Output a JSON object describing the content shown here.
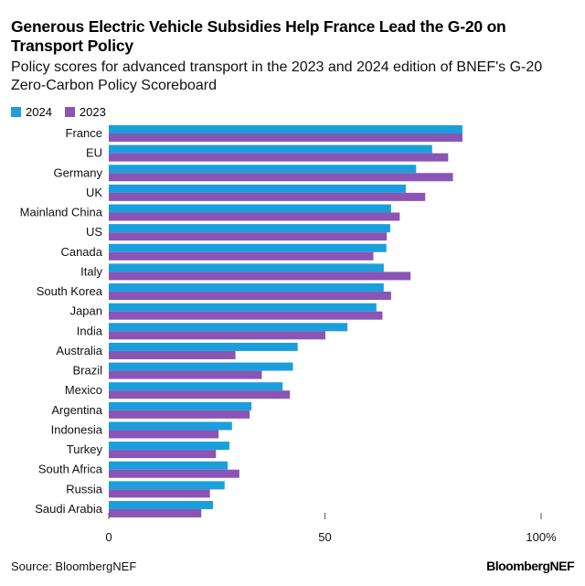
{
  "title": "Generous Electric Vehicle Subsidies Help France Lead the G-20 on Transport Policy",
  "subtitle": "Policy scores for advanced transport in the 2023 and 2024 edition of BNEF's G-20 Zero-Carbon Policy Scoreboard",
  "source": "Source: BloombergNEF",
  "logo": "BloombergNEF",
  "chart_data": {
    "type": "bar",
    "orientation": "horizontal",
    "categories": [
      "France",
      "EU",
      "Germany",
      "UK",
      "Mainland China",
      "US",
      "Canada",
      "Italy",
      "South Korea",
      "Japan",
      "India",
      "Australia",
      "Brazil",
      "Mexico",
      "Argentina",
      "Indonesia",
      "Turkey",
      "South Africa",
      "Russia",
      "Saudi Arabia"
    ],
    "series": [
      {
        "name": "2024",
        "color": "#1a9fdc",
        "values": [
          81.8,
          74.8,
          71.1,
          68.7,
          65.3,
          65.1,
          64.2,
          63.6,
          63.6,
          61.9,
          55.2,
          43.7,
          42.6,
          40.2,
          33.0,
          28.5,
          27.9,
          27.5,
          26.8,
          24.1
        ]
      },
      {
        "name": "2023",
        "color": "#8a55b5",
        "values": [
          81.8,
          78.5,
          79.6,
          73.2,
          67.3,
          64.3,
          61.2,
          69.8,
          65.3,
          63.3,
          50.1,
          29.3,
          35.4,
          41.9,
          32.6,
          25.4,
          24.8,
          30.2,
          23.4,
          21.4
        ]
      }
    ],
    "xlim": [
      0,
      100
    ],
    "xticks": [
      0,
      50,
      100
    ],
    "xtick_labels": [
      "0",
      "50",
      "100%"
    ],
    "grid": false,
    "legend": "top-left"
  }
}
